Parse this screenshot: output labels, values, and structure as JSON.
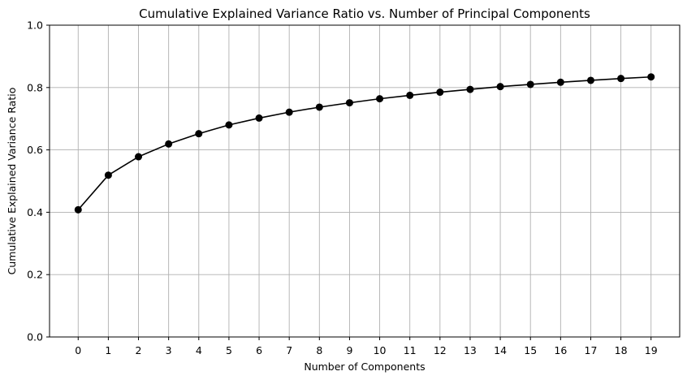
{
  "chart_data": {
    "type": "line",
    "title": "Cumulative Explained Variance Ratio vs. Number of Principal Components",
    "xlabel": "Number of Components",
    "ylabel": "Cumulative Explained Variance Ratio",
    "x": [
      0,
      1,
      2,
      3,
      4,
      5,
      6,
      7,
      8,
      9,
      10,
      11,
      12,
      13,
      14,
      15,
      16,
      17,
      18,
      19
    ],
    "xlim": [
      -0.95,
      19.95
    ],
    "ylim": [
      0,
      1.0
    ],
    "x_ticks": [
      "0",
      "1",
      "2",
      "3",
      "4",
      "5",
      "6",
      "7",
      "8",
      "9",
      "10",
      "11",
      "12",
      "13",
      "14",
      "15",
      "16",
      "17",
      "18",
      "19"
    ],
    "y_ticks": [
      {
        "value": 0.0,
        "label": "0.0"
      },
      {
        "value": 0.2,
        "label": "0.2"
      },
      {
        "value": 0.4,
        "label": "0.4"
      },
      {
        "value": 0.6,
        "label": "0.6"
      },
      {
        "value": 0.8,
        "label": "0.8"
      },
      {
        "value": 1.0,
        "label": "1.0"
      }
    ],
    "grid": true,
    "series": [
      {
        "values": [
          0.408,
          0.519,
          0.578,
          0.619,
          0.652,
          0.68,
          0.702,
          0.721,
          0.737,
          0.751,
          0.764,
          0.775,
          0.785,
          0.794,
          0.803,
          0.81,
          0.817,
          0.823,
          0.829,
          0.834
        ],
        "color": "#000000",
        "marker": "circle"
      }
    ],
    "colors": {
      "line": "#000000",
      "grid": "#b0b0b0",
      "frame": "#000000",
      "background": "#ffffff"
    }
  }
}
